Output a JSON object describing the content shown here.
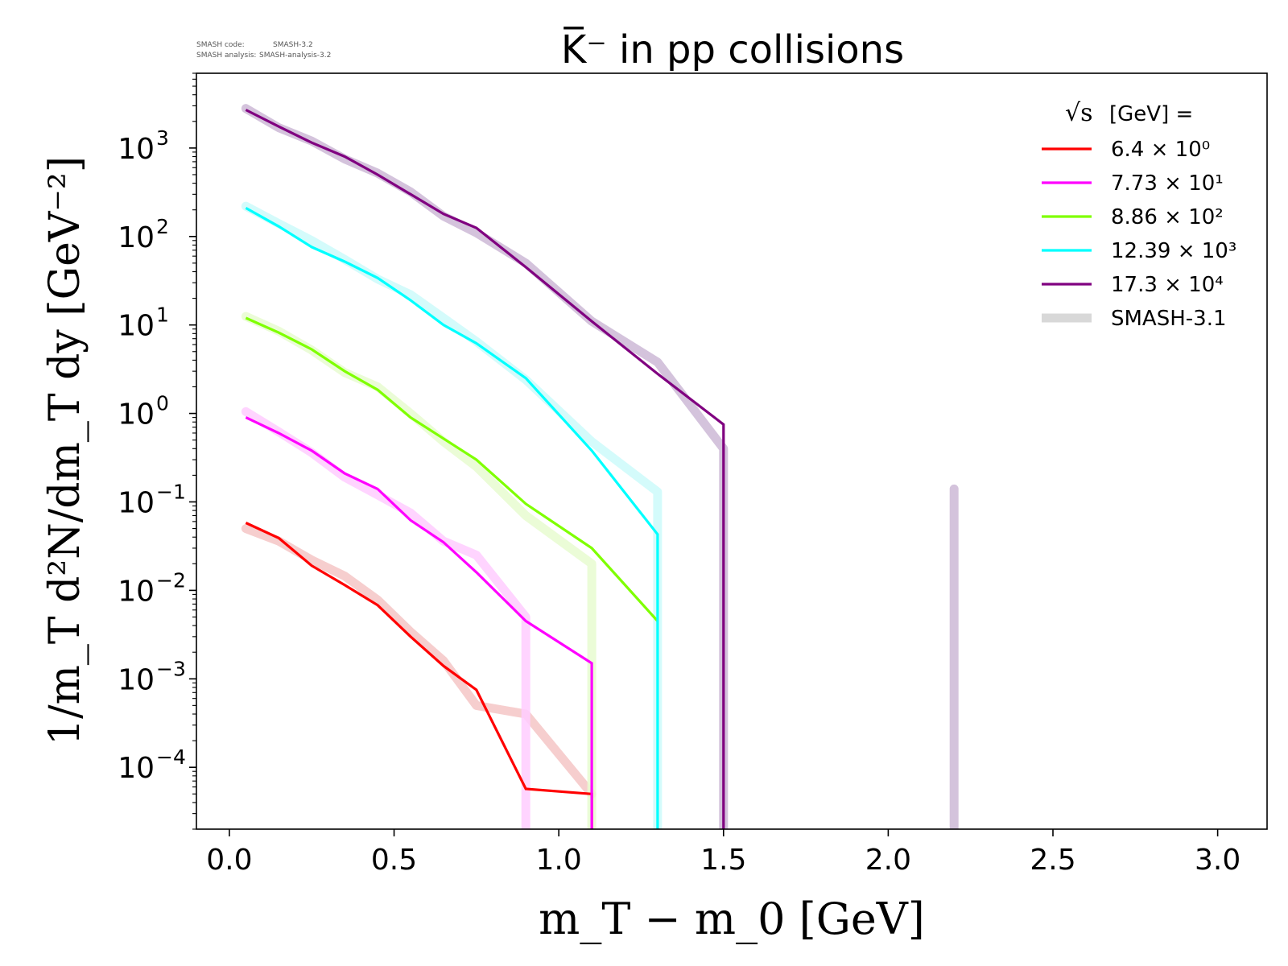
{
  "meta": {
    "code_label": "SMASH code:",
    "code_value": "SMASH-3.2",
    "analysis_label": "SMASH analysis:",
    "analysis_value": "SMASH-analysis-3.2"
  },
  "chart_data": {
    "type": "line",
    "title": "K̅⁻ in pp collisions",
    "xlabel": "m_T − m_0 [GeV]",
    "ylabel": "1/m_T d²N/dm_T dy [GeV⁻²]",
    "xscale": "linear",
    "yscale": "log",
    "xlim": [
      -0.1,
      3.15
    ],
    "ylim": [
      2e-05,
      7000
    ],
    "xticks": [
      0.0,
      0.5,
      1.0,
      1.5,
      2.0,
      2.5,
      3.0
    ],
    "xtick_labels": [
      "0.0",
      "0.5",
      "1.0",
      "1.5",
      "2.0",
      "2.5",
      "3.0"
    ],
    "yticks": [
      0.0001,
      0.001,
      0.01,
      0.1,
      1,
      10,
      100,
      1000
    ],
    "ytick_exponents": [
      "−4",
      "−3",
      "−2",
      "−1",
      "0",
      "1",
      "2",
      "3"
    ],
    "grid": false,
    "legend": {
      "placement": "top-right",
      "title": "[GeV] =",
      "title_symbol": "√s"
    },
    "series": [
      {
        "name": "6.4 × 10⁰",
        "color": "#ff0000",
        "x": [
          0.05,
          0.15,
          0.25,
          0.35,
          0.45,
          0.55,
          0.65,
          0.75,
          0.9,
          1.1,
          1.1
        ],
        "y": [
          0.058,
          0.039,
          0.019,
          0.0115,
          0.0068,
          0.003,
          0.0014,
          0.00075,
          5.7e-05,
          5e-05,
          2e-05
        ]
      },
      {
        "name": "7.73 × 10¹",
        "color": "#ff00ff",
        "x": [
          0.05,
          0.15,
          0.25,
          0.35,
          0.45,
          0.55,
          0.65,
          0.75,
          0.9,
          1.1,
          1.1
        ],
        "y": [
          0.9,
          0.6,
          0.38,
          0.21,
          0.14,
          0.062,
          0.035,
          0.016,
          0.0045,
          0.0015,
          2e-05
        ]
      },
      {
        "name": "8.86 × 10²",
        "color": "#7fff00",
        "x": [
          0.05,
          0.15,
          0.25,
          0.35,
          0.45,
          0.55,
          0.65,
          0.75,
          0.9,
          1.1,
          1.3
        ],
        "y": [
          12,
          8.2,
          5.3,
          3.0,
          1.85,
          0.9,
          0.52,
          0.3,
          0.095,
          0.03,
          0.0045
        ]
      },
      {
        "name": "12.39 × 10³",
        "color": "#00ffff",
        "x": [
          0.05,
          0.15,
          0.25,
          0.35,
          0.45,
          0.55,
          0.65,
          0.75,
          0.9,
          1.1,
          1.3,
          1.3
        ],
        "y": [
          210,
          130,
          76,
          52,
          34,
          19,
          10,
          6.2,
          2.5,
          0.38,
          0.043,
          2e-05
        ]
      },
      {
        "name": "17.3 × 10⁴",
        "color": "#800080",
        "x": [
          0.05,
          0.15,
          0.25,
          0.35,
          0.45,
          0.55,
          0.65,
          0.75,
          0.9,
          1.1,
          1.3,
          1.5,
          1.5
        ],
        "y": [
          2700,
          1750,
          1150,
          800,
          500,
          300,
          180,
          125,
          45,
          11,
          2.8,
          0.75,
          2e-05
        ]
      }
    ],
    "reference_series": [
      {
        "name": "SMASH-3.1",
        "legend_color": "#d8d8d8",
        "segments": [
          {
            "color": "#f5c6c6",
            "x": [
              0.05,
              0.15,
              0.25,
              0.35,
              0.45,
              0.55,
              0.65,
              0.75,
              0.9,
              1.1
            ],
            "y": [
              0.05,
              0.036,
              0.022,
              0.0145,
              0.0078,
              0.0034,
              0.0016,
              0.0005,
              0.0004,
              5e-05
            ]
          },
          {
            "color": "#ffccff",
            "x": [
              0.05,
              0.15,
              0.25,
              0.35,
              0.45,
              0.55,
              0.65,
              0.75,
              0.9,
              0.9
            ],
            "y": [
              1.05,
              0.62,
              0.36,
              0.19,
              0.12,
              0.075,
              0.036,
              0.025,
              0.005,
              2e-05
            ]
          },
          {
            "color": "#e8fcd0",
            "x": [
              0.05,
              0.15,
              0.25,
              0.35,
              0.45,
              0.55,
              0.65,
              0.75,
              0.9,
              1.1,
              1.1
            ],
            "y": [
              12.5,
              8.5,
              5.2,
              2.9,
              2.0,
              1.0,
              0.48,
              0.25,
              0.07,
              0.02,
              2e-05
            ]
          },
          {
            "color": "#ccfafa",
            "x": [
              0.05,
              0.15,
              0.25,
              0.35,
              0.45,
              0.55,
              0.65,
              0.75,
              0.9,
              1.1,
              1.3,
              1.3
            ],
            "y": [
              220,
              140,
              90,
              55,
              33,
              22,
              12,
              6.5,
              2.4,
              0.48,
              0.13,
              2e-05
            ]
          },
          {
            "color": "#cdb9d6",
            "x": [
              0.05,
              0.15,
              0.25,
              0.35,
              0.45,
              0.55,
              0.65,
              0.75,
              0.9,
              1.1,
              1.3,
              1.5,
              1.5
            ],
            "y": [
              2800,
              1700,
              1200,
              750,
              520,
              320,
              170,
              110,
              50,
              11,
              3.8,
              0.4,
              2e-05
            ]
          },
          {
            "color": "#cdb9d6",
            "x": [
              2.2,
              2.2
            ],
            "y": [
              0.14,
              2e-05
            ]
          }
        ]
      }
    ]
  }
}
